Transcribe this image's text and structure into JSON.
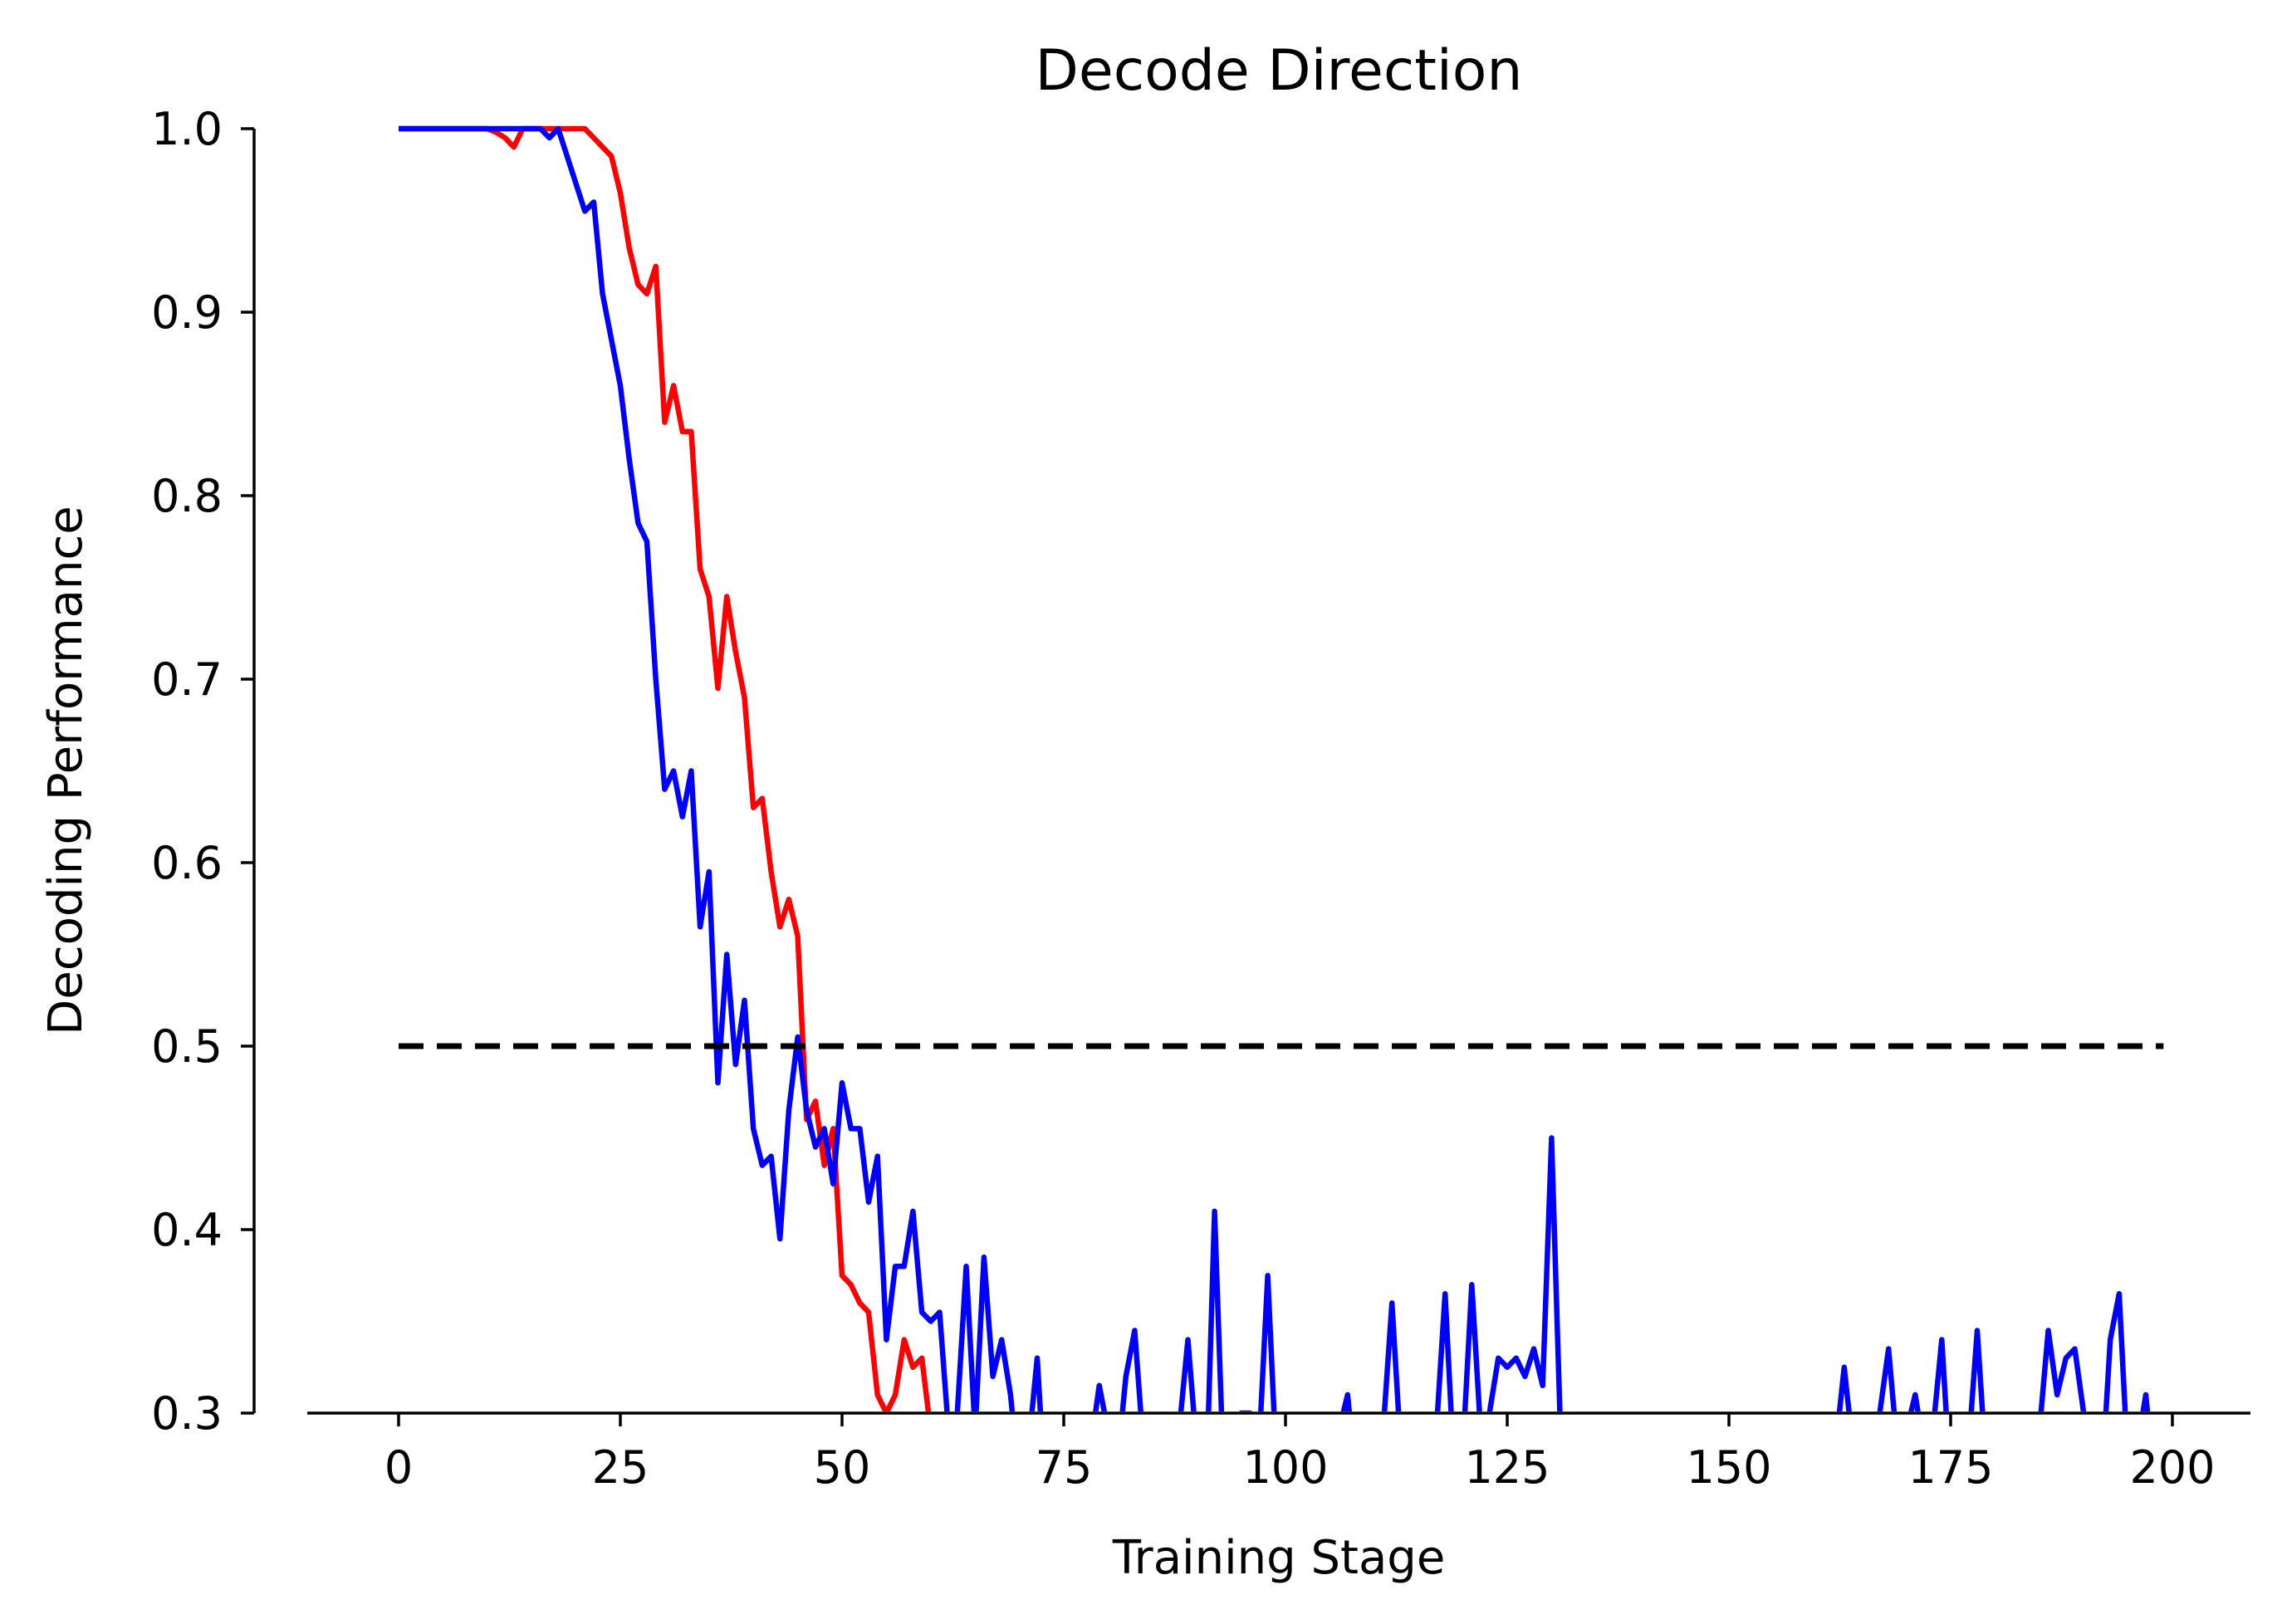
{
  "chart_data": {
    "type": "line",
    "title": "Decode Direction",
    "xlabel": "Training Stage",
    "ylabel": "Decoding Performance",
    "xlim": [
      -10,
      210
    ],
    "ylim": [
      0.3,
      1.0
    ],
    "x_ticks": [
      0,
      25,
      50,
      75,
      100,
      125,
      150,
      175,
      200
    ],
    "x_tick_labels": [
      "0",
      "25",
      "50",
      "75",
      "100",
      "125",
      "150",
      "175",
      "200"
    ],
    "y_ticks": [
      0.3,
      0.4,
      0.5,
      0.6,
      0.7,
      0.8,
      0.9,
      1.0
    ],
    "y_tick_labels": [
      "0.3",
      "0.4",
      "0.5",
      "0.6",
      "0.7",
      "0.8",
      "0.9",
      "1.0"
    ],
    "grid": false,
    "reference_line": {
      "y": 0.5,
      "x_range": [
        0,
        199
      ],
      "style": "dashed",
      "color": "#000000"
    },
    "series": [
      {
        "color": "#ff0000",
        "points": [
          [
            0,
            1.0
          ],
          [
            10,
            1.0
          ],
          [
            11,
            0.998
          ],
          [
            12,
            0.995
          ],
          [
            13,
            0.99
          ],
          [
            14,
            1.0
          ],
          [
            20,
            1.0
          ],
          [
            21,
            1.0
          ],
          [
            22,
            0.995
          ],
          [
            23,
            0.99
          ],
          [
            24,
            0.985
          ],
          [
            25,
            0.965
          ],
          [
            26,
            0.935
          ],
          [
            27,
            0.915
          ],
          [
            28,
            0.91
          ],
          [
            29,
            0.925
          ],
          [
            30,
            0.84
          ],
          [
            31,
            0.86
          ],
          [
            32,
            0.835
          ],
          [
            33,
            0.835
          ],
          [
            34,
            0.76
          ],
          [
            35,
            0.745
          ],
          [
            36,
            0.695
          ],
          [
            37,
            0.745
          ],
          [
            38,
            0.715
          ],
          [
            39,
            0.69
          ],
          [
            40,
            0.63
          ],
          [
            41,
            0.635
          ],
          [
            42,
            0.595
          ],
          [
            43,
            0.565
          ],
          [
            44,
            0.58
          ],
          [
            45,
            0.56
          ],
          [
            46,
            0.46
          ],
          [
            47,
            0.47
          ],
          [
            48,
            0.435
          ],
          [
            49,
            0.455
          ],
          [
            50,
            0.375
          ],
          [
            51,
            0.37
          ],
          [
            52,
            0.36
          ],
          [
            53,
            0.355
          ],
          [
            54,
            0.31
          ],
          [
            55,
            0.3
          ],
          [
            56,
            0.31
          ],
          [
            57,
            0.34
          ],
          [
            58,
            0.325
          ],
          [
            59,
            0.33
          ],
          [
            60,
            0.29
          ],
          [
            61,
            0.25
          ]
        ]
      },
      {
        "color": "#0000ff",
        "points": [
          [
            0,
            1.0
          ],
          [
            16,
            1.0
          ],
          [
            17,
            0.995
          ],
          [
            18,
            1.0
          ],
          [
            19,
            0.985
          ],
          [
            20,
            0.97
          ],
          [
            21,
            0.955
          ],
          [
            22,
            0.96
          ],
          [
            23,
            0.91
          ],
          [
            24,
            0.885
          ],
          [
            25,
            0.86
          ],
          [
            26,
            0.82
          ],
          [
            27,
            0.785
          ],
          [
            28,
            0.775
          ],
          [
            29,
            0.7
          ],
          [
            30,
            0.64
          ],
          [
            31,
            0.65
          ],
          [
            32,
            0.625
          ],
          [
            33,
            0.65
          ],
          [
            34,
            0.565
          ],
          [
            35,
            0.595
          ],
          [
            36,
            0.48
          ],
          [
            37,
            0.55
          ],
          [
            38,
            0.49
          ],
          [
            39,
            0.525
          ],
          [
            40,
            0.455
          ],
          [
            41,
            0.435
          ],
          [
            42,
            0.44
          ],
          [
            43,
            0.395
          ],
          [
            44,
            0.465
          ],
          [
            45,
            0.505
          ],
          [
            46,
            0.465
          ],
          [
            47,
            0.445
          ],
          [
            48,
            0.455
          ],
          [
            49,
            0.425
          ],
          [
            50,
            0.48
          ],
          [
            51,
            0.455
          ],
          [
            52,
            0.455
          ],
          [
            53,
            0.415
          ],
          [
            54,
            0.44
          ],
          [
            55,
            0.34
          ],
          [
            56,
            0.38
          ],
          [
            57,
            0.38
          ],
          [
            58,
            0.41
          ],
          [
            59,
            0.355
          ],
          [
            60,
            0.35
          ],
          [
            61,
            0.355
          ],
          [
            62,
            0.29
          ],
          [
            63,
            0.3
          ],
          [
            64,
            0.38
          ],
          [
            65,
            0.29
          ],
          [
            66,
            0.385
          ],
          [
            67,
            0.32
          ],
          [
            68,
            0.34
          ],
          [
            69,
            0.31
          ],
          [
            70,
            0.26
          ],
          [
            71,
            0.28
          ],
          [
            72,
            0.33
          ],
          [
            73,
            0.25
          ],
          [
            78,
            0.28
          ],
          [
            79,
            0.315
          ],
          [
            80,
            0.29
          ],
          [
            81,
            0.27
          ],
          [
            82,
            0.32
          ],
          [
            83,
            0.345
          ],
          [
            84,
            0.28
          ],
          [
            88,
            0.29
          ],
          [
            89,
            0.34
          ],
          [
            90,
            0.28
          ],
          [
            91,
            0.25
          ],
          [
            92,
            0.41
          ],
          [
            93,
            0.27
          ],
          [
            94,
            0.28
          ],
          [
            95,
            0.3
          ],
          [
            96,
            0.3
          ],
          [
            97,
            0.28
          ],
          [
            98,
            0.375
          ],
          [
            99,
            0.27
          ],
          [
            106,
            0.29
          ],
          [
            107,
            0.31
          ],
          [
            108,
            0.26
          ],
          [
            111,
            0.29
          ],
          [
            112,
            0.36
          ],
          [
            113,
            0.28
          ],
          [
            117,
            0.29
          ],
          [
            118,
            0.365
          ],
          [
            119,
            0.27
          ],
          [
            120,
            0.28
          ],
          [
            121,
            0.37
          ],
          [
            122,
            0.29
          ],
          [
            123,
            0.3
          ],
          [
            124,
            0.33
          ],
          [
            125,
            0.325
          ],
          [
            126,
            0.33
          ],
          [
            127,
            0.32
          ],
          [
            128,
            0.335
          ],
          [
            129,
            0.315
          ],
          [
            130,
            0.45
          ],
          [
            131,
            0.29
          ],
          [
            132,
            0.25
          ],
          [
            162,
            0.28
          ],
          [
            163,
            0.325
          ],
          [
            164,
            0.28
          ],
          [
            167,
            0.3
          ],
          [
            168,
            0.335
          ],
          [
            169,
            0.28
          ],
          [
            170,
            0.29
          ],
          [
            171,
            0.31
          ],
          [
            172,
            0.28
          ],
          [
            173,
            0.29
          ],
          [
            174,
            0.34
          ],
          [
            175,
            0.26
          ],
          [
            177,
            0.28
          ],
          [
            178,
            0.345
          ],
          [
            179,
            0.27
          ],
          [
            185,
            0.29
          ],
          [
            186,
            0.345
          ],
          [
            187,
            0.31
          ],
          [
            188,
            0.33
          ],
          [
            189,
            0.335
          ],
          [
            190,
            0.3
          ],
          [
            191,
            0.28
          ],
          [
            192,
            0.26
          ],
          [
            193,
            0.34
          ],
          [
            194,
            0.365
          ],
          [
            195,
            0.27
          ],
          [
            196,
            0.28
          ],
          [
            197,
            0.31
          ],
          [
            198,
            0.26
          ]
        ]
      }
    ]
  }
}
